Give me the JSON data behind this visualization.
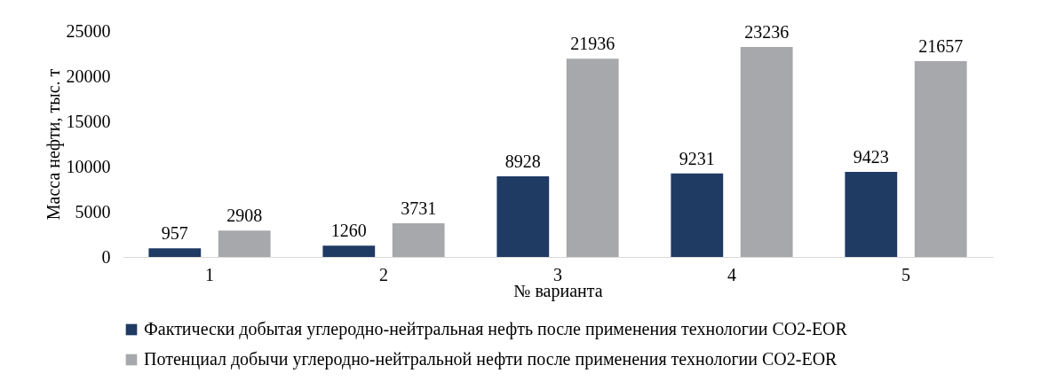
{
  "chart_data": {
    "type": "bar",
    "xlabel": "№ варианта",
    "ylabel": "Масса нефти, тыс. т",
    "categories": [
      "1",
      "2",
      "3",
      "4",
      "5"
    ],
    "series": [
      {
        "name": "Фактически добытая углеродно-нейтральная нефть после применения технологии CO2-EOR",
        "color": "#1f3a63",
        "values": [
          957,
          1260,
          8928,
          9231,
          9423
        ]
      },
      {
        "name": "Потенциал добычи углеродно-нейтральной нефти после применения технологии CO2-EOR",
        "color": "#a6a8ab",
        "values": [
          2908,
          3731,
          21936,
          23236,
          21657
        ]
      }
    ],
    "ylim": [
      0,
      25000
    ],
    "yticks": [
      0,
      5000,
      10000,
      15000,
      20000,
      25000
    ],
    "data_labels": true,
    "grid": false,
    "legend": "bottom"
  }
}
